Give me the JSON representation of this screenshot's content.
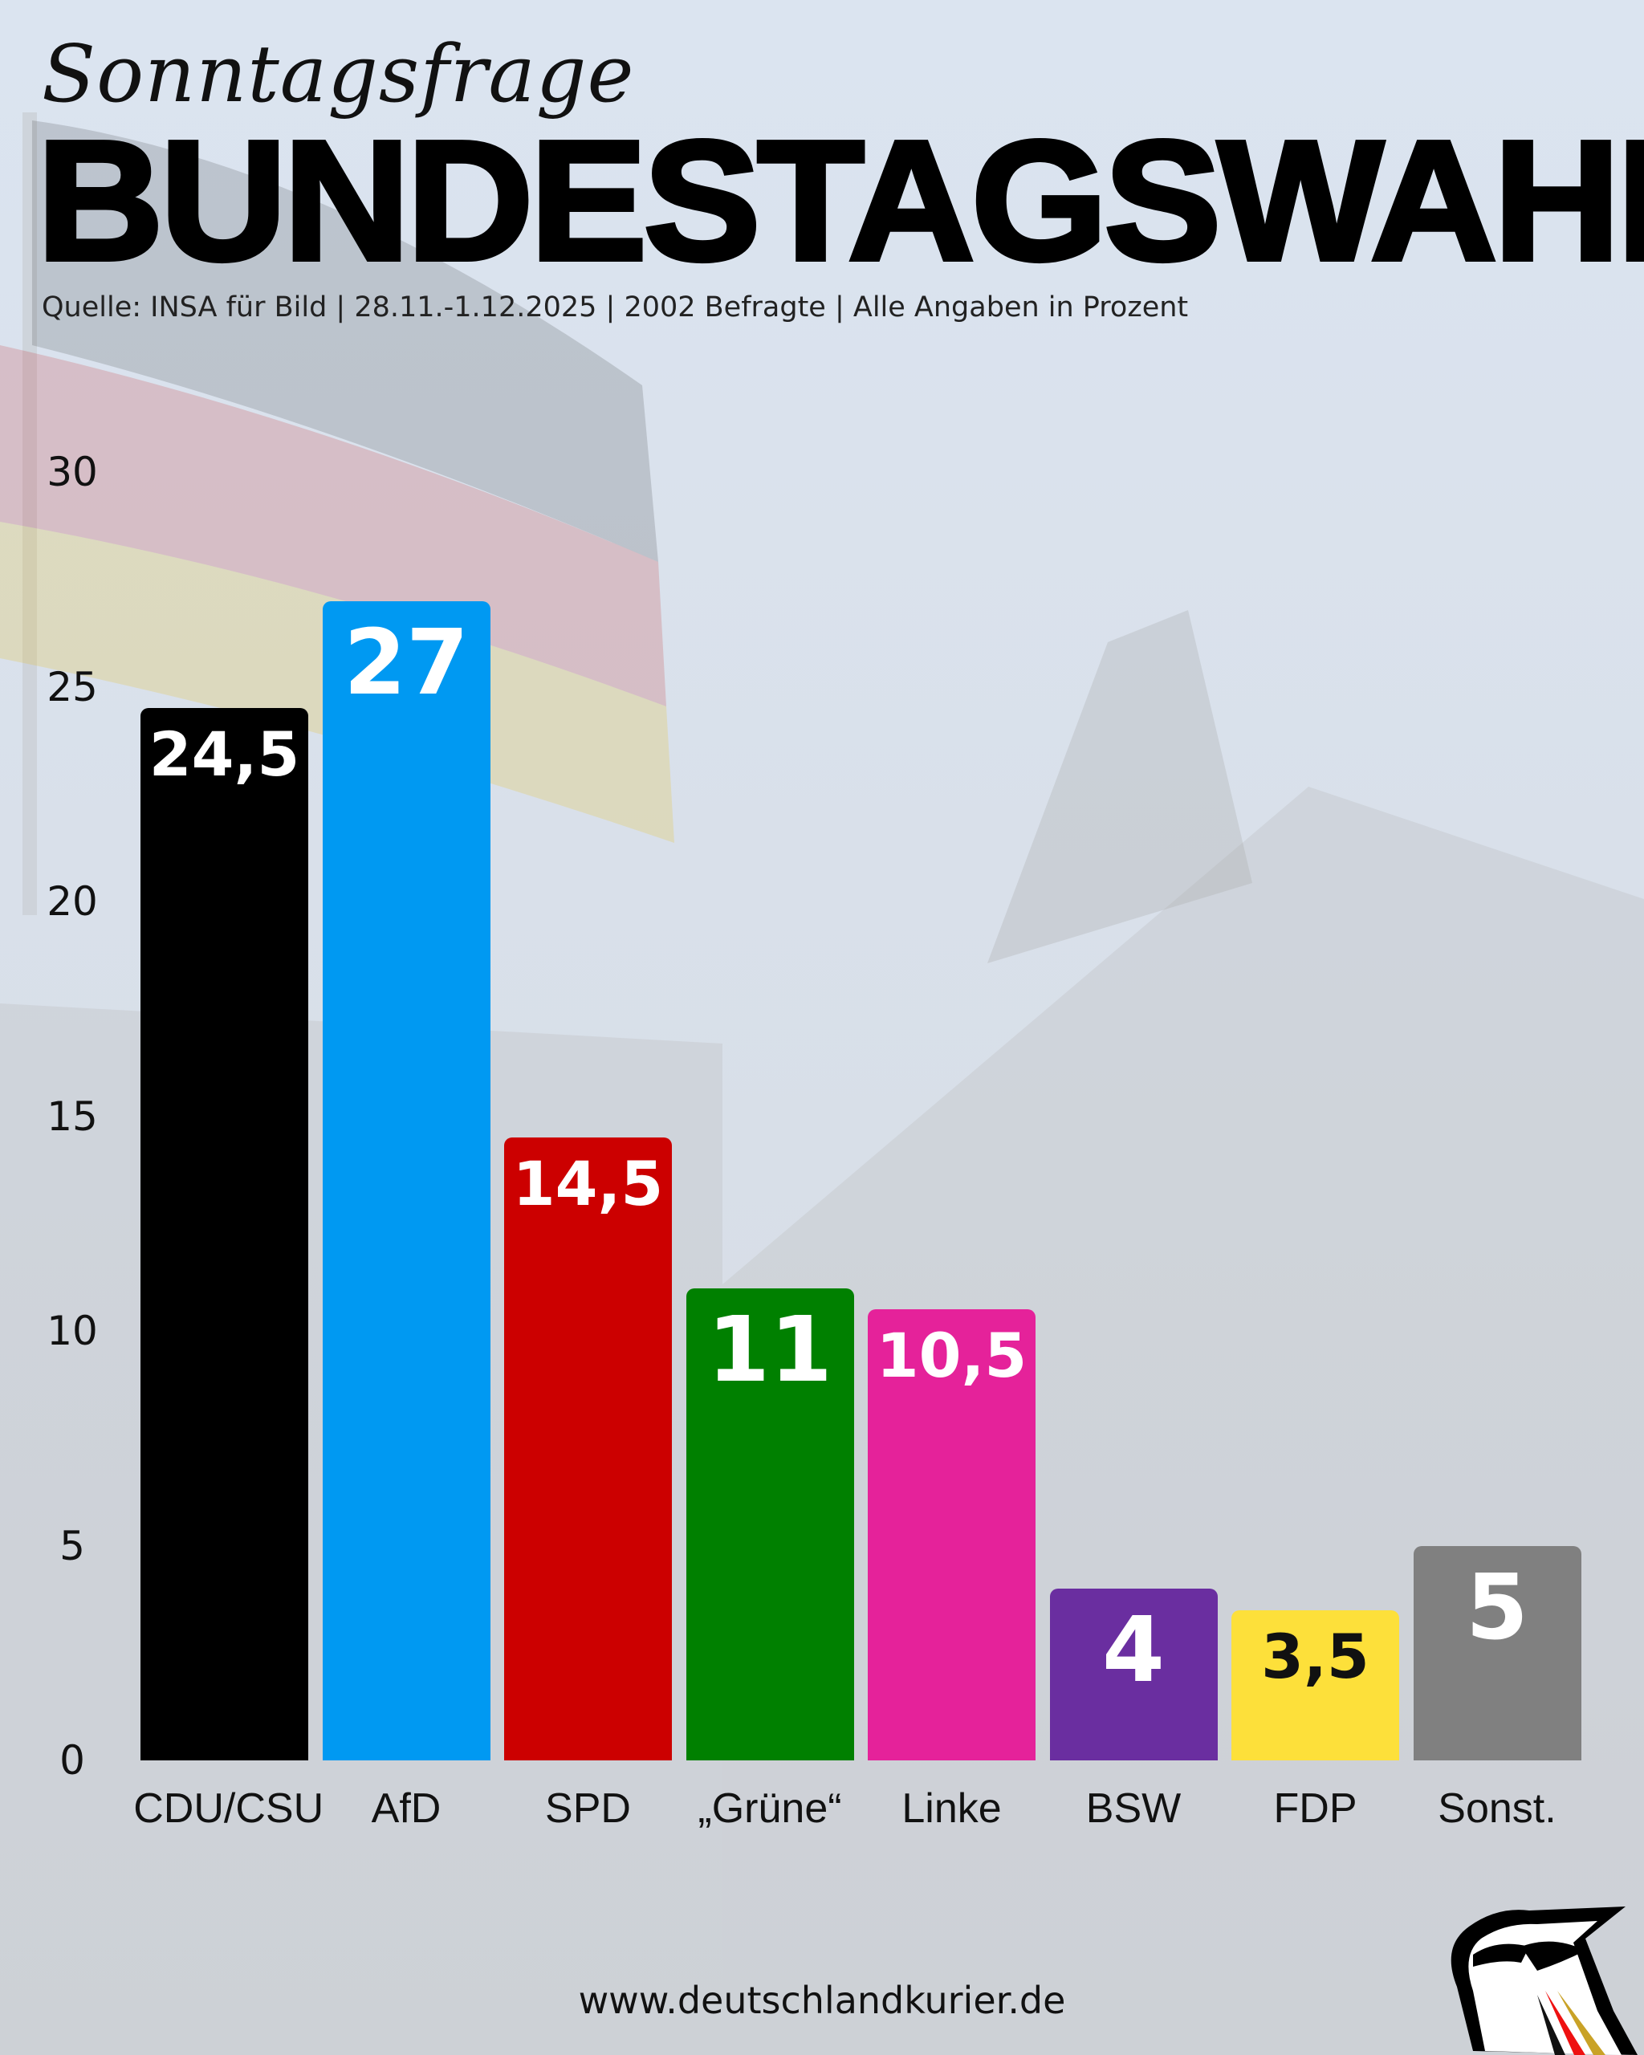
{
  "header": {
    "subtitle": "Sonntagsfrage",
    "title": "BUNDESTAGSWAHL",
    "source": "Quelle: INSA für Bild | 28.11.-1.12.2025 | 2002 Befragte | Alle Angaben in Prozent"
  },
  "chart_data": {
    "type": "bar",
    "categories": [
      "CDU/CSU",
      "AfD",
      "SPD",
      "„Grüne“",
      "Linke",
      "BSW",
      "FDP",
      "Sonst."
    ],
    "values": [
      24.5,
      27,
      14.5,
      11,
      10.5,
      4,
      3.5,
      5
    ],
    "value_labels": [
      "24,5",
      "27",
      "14,5",
      "11",
      "10,5",
      "4",
      "3,5",
      "5"
    ],
    "colors": [
      "#000000",
      "#0099f2",
      "#cc0000",
      "#008000",
      "#e5229a",
      "#6a2ea0",
      "#fde03a",
      "#808080"
    ],
    "label_colors": [
      "#ffffff",
      "#ffffff",
      "#ffffff",
      "#ffffff",
      "#ffffff",
      "#ffffff",
      "#111111",
      "#ffffff"
    ],
    "yticks": [
      "0",
      "5",
      "10",
      "15",
      "20",
      "25",
      "30"
    ],
    "ylim": [
      0,
      30
    ],
    "grid": false,
    "xlabel": "",
    "ylabel": ""
  },
  "footer": {
    "url": "www.deutschlandkurier.de",
    "logo_icon": "eagle-logo-icon"
  }
}
